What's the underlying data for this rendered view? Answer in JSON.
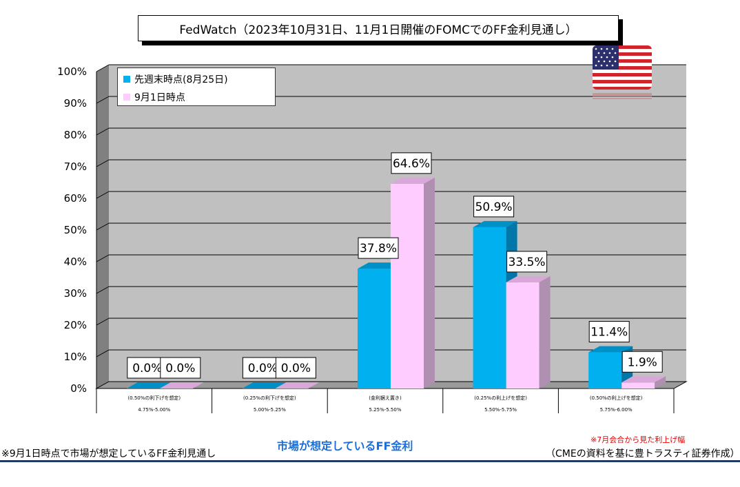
{
  "title": "FedWatch（2023年10月31日、11月1日開催のFOMCでのFF金利見通し）",
  "colors": {
    "series1": "#00b0ef",
    "series2": "#ffccff",
    "plot_bg": "#c0c0c0",
    "wall_side": "#808080"
  },
  "chart_data": {
    "type": "bar",
    "categories": [
      "4.75%-5.00%",
      "5.00%-5.25%",
      "5.25%-5.50%",
      "5.50%-5.75%",
      "5.75%-6.00%"
    ],
    "category_notes": [
      "(0.50%の利下げを想定)",
      "(0.25%の利下げを想定)",
      "(金利据え置き)",
      "(0.25%の利上げを想定)",
      "(0.50%の利上げを想定)"
    ],
    "series": [
      {
        "name": "先週末時点(8月25日)",
        "values": [
          0.0,
          0.0,
          37.8,
          50.9,
          11.4
        ]
      },
      {
        "name": "9月1日時点",
        "values": [
          0.0,
          0.0,
          64.6,
          33.5,
          1.9
        ]
      }
    ],
    "data_labels": [
      [
        "0.0%",
        "0.0%",
        "37.8%",
        "50.9%",
        "11.4%"
      ],
      [
        "0.0%",
        "0.0%",
        "64.6%",
        "33.5%",
        "1.9%"
      ]
    ],
    "y_ticks": [
      "0%",
      "10%",
      "20%",
      "30%",
      "40%",
      "50%",
      "60%",
      "70%",
      "80%",
      "90%",
      "100%"
    ],
    "ylim": [
      0,
      100
    ],
    "xlabel": "市場が想定しているFF金利",
    "grid": true,
    "legend_position": "top-left"
  },
  "footer": {
    "left_note": "※9月1日時点で市場が想定しているFF金利見通し",
    "red_note": "※7月会合から見た利上げ幅",
    "source": "（CMEの資料を基に豊トラスティ証券作成）"
  }
}
